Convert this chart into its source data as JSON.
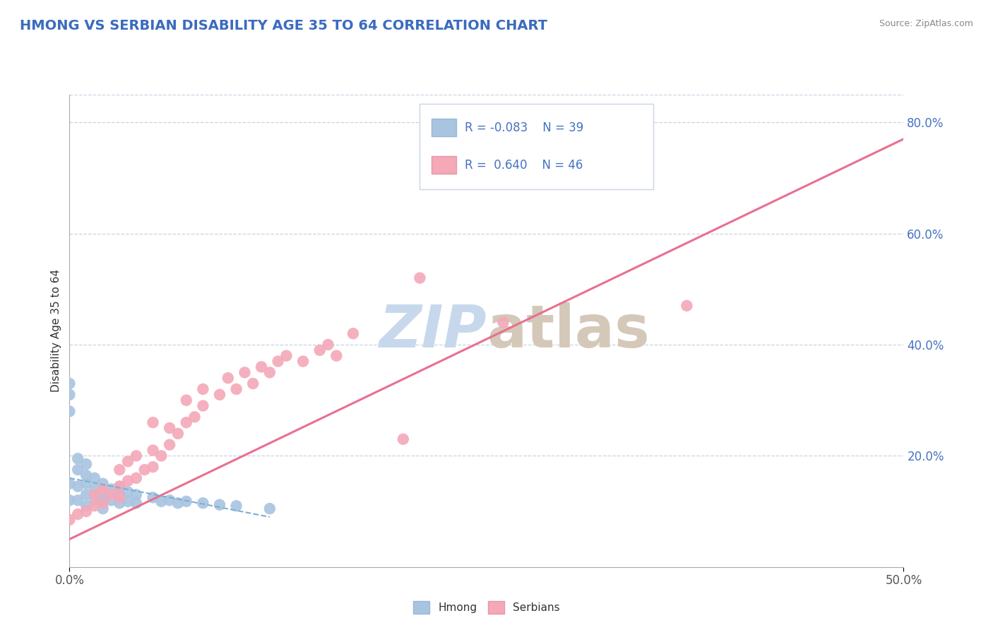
{
  "title": "HMONG VS SERBIAN DISABILITY AGE 35 TO 64 CORRELATION CHART",
  "source": "Source: ZipAtlas.com",
  "ylabel": "Disability Age 35 to 64",
  "xlim": [
    0.0,
    0.5
  ],
  "ylim": [
    0.0,
    0.85
  ],
  "ytick_values": [
    0.2,
    0.4,
    0.6,
    0.8
  ],
  "xtick_values": [
    0.0,
    0.5
  ],
  "legend_hmong_label": "Hmong",
  "legend_serbian_label": "Serbians",
  "hmong_R": -0.083,
  "hmong_N": 39,
  "serbian_R": 0.64,
  "serbian_N": 46,
  "hmong_color": "#a8c4e0",
  "serbian_color": "#f4a8b8",
  "hmong_line_color": "#7bafd4",
  "serbian_line_color": "#e87090",
  "title_color": "#3a6bbf",
  "source_color": "#888888",
  "watermark_color": "#c8d8ec",
  "grid_color": "#c8d4e4",
  "axis_color": "#c0c8d8",
  "hmong_x": [
    0.0,
    0.0,
    0.0,
    0.0,
    0.0,
    0.005,
    0.005,
    0.005,
    0.005,
    0.01,
    0.01,
    0.01,
    0.01,
    0.01,
    0.015,
    0.015,
    0.015,
    0.02,
    0.02,
    0.02,
    0.02,
    0.025,
    0.025,
    0.03,
    0.03,
    0.03,
    0.035,
    0.035,
    0.04,
    0.04,
    0.05,
    0.055,
    0.06,
    0.065,
    0.07,
    0.08,
    0.09,
    0.1,
    0.12
  ],
  "hmong_y": [
    0.33,
    0.31,
    0.28,
    0.15,
    0.12,
    0.195,
    0.175,
    0.145,
    0.12,
    0.185,
    0.165,
    0.15,
    0.13,
    0.11,
    0.16,
    0.14,
    0.12,
    0.15,
    0.135,
    0.12,
    0.105,
    0.14,
    0.12,
    0.145,
    0.13,
    0.115,
    0.135,
    0.118,
    0.13,
    0.115,
    0.125,
    0.118,
    0.12,
    0.115,
    0.118,
    0.115,
    0.112,
    0.11,
    0.105
  ],
  "serbian_x": [
    0.0,
    0.005,
    0.01,
    0.015,
    0.015,
    0.02,
    0.02,
    0.025,
    0.03,
    0.03,
    0.03,
    0.035,
    0.035,
    0.04,
    0.04,
    0.045,
    0.05,
    0.05,
    0.05,
    0.055,
    0.06,
    0.06,
    0.065,
    0.07,
    0.07,
    0.075,
    0.08,
    0.08,
    0.09,
    0.095,
    0.1,
    0.105,
    0.11,
    0.115,
    0.12,
    0.125,
    0.13,
    0.14,
    0.15,
    0.155,
    0.16,
    0.17,
    0.2,
    0.21,
    0.26,
    0.37
  ],
  "serbian_y": [
    0.085,
    0.095,
    0.1,
    0.11,
    0.13,
    0.115,
    0.14,
    0.13,
    0.125,
    0.145,
    0.175,
    0.155,
    0.19,
    0.16,
    0.2,
    0.175,
    0.18,
    0.21,
    0.26,
    0.2,
    0.22,
    0.25,
    0.24,
    0.26,
    0.3,
    0.27,
    0.29,
    0.32,
    0.31,
    0.34,
    0.32,
    0.35,
    0.33,
    0.36,
    0.35,
    0.37,
    0.38,
    0.37,
    0.39,
    0.4,
    0.38,
    0.42,
    0.23,
    0.52,
    0.44,
    0.47
  ]
}
